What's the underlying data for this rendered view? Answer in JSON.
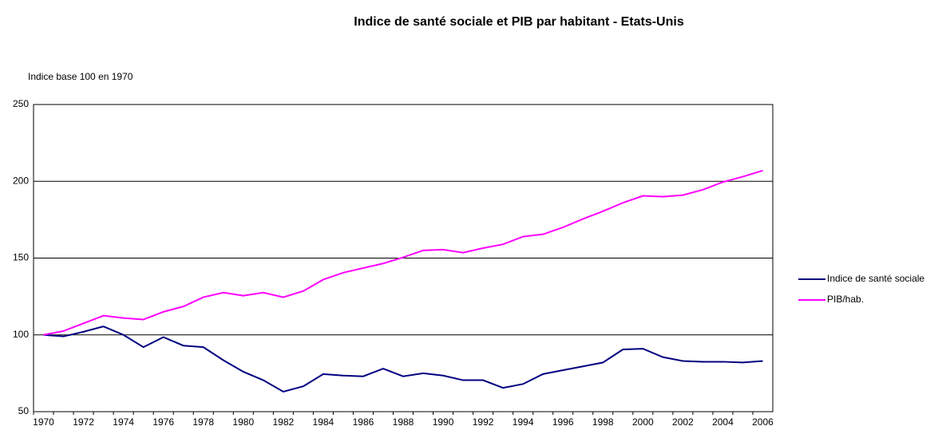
{
  "chart_data": {
    "type": "line",
    "title": "Indice de santé sociale et PIB par habitant - Etats-Unis",
    "y_label": "Indice base 100 en 1970",
    "categories": [
      "1970",
      null,
      "1972",
      null,
      "1974",
      null,
      "1976",
      null,
      "1978",
      null,
      "1980",
      null,
      "1982",
      null,
      "1984",
      null,
      "1986",
      null,
      "1988",
      null,
      "1990",
      null,
      "1992",
      null,
      "1994",
      null,
      "1996",
      null,
      "1998",
      null,
      "2000",
      null,
      "2002",
      null,
      "2004",
      null,
      "2006"
    ],
    "series": [
      {
        "name": "Indice de santé sociale",
        "color": "#000080",
        "values": [
          100,
          99,
          102,
          105.5,
          100,
          92,
          98.5,
          93,
          92,
          83.5,
          76,
          70.5,
          63,
          66.5,
          74.5,
          73.5,
          73,
          78,
          73,
          75,
          73.5,
          70.5,
          70.5,
          65.5,
          68,
          74.5,
          77,
          79.5,
          82,
          90.5,
          91,
          85.5,
          83,
          82.5,
          82.5,
          82,
          83
        ]
      },
      {
        "name": "PIB/hab.",
        "color": "#ff00ff",
        "values": [
          100,
          102.5,
          107.5,
          112.5,
          111,
          110,
          115,
          118.5,
          124.5,
          127.5,
          125.5,
          127.5,
          124.5,
          128.5,
          136,
          140.5,
          143.5,
          146.5,
          150.5,
          155,
          155.5,
          153.5,
          156.5,
          159,
          164,
          165.5,
          170,
          175.5,
          180.5,
          186,
          190.5,
          190,
          191,
          194.5,
          199.5,
          203,
          207
        ]
      }
    ],
    "ylim": [
      50,
      250
    ],
    "yticks": [
      50,
      100,
      150,
      200,
      250
    ],
    "grid": true,
    "legend": "right"
  }
}
